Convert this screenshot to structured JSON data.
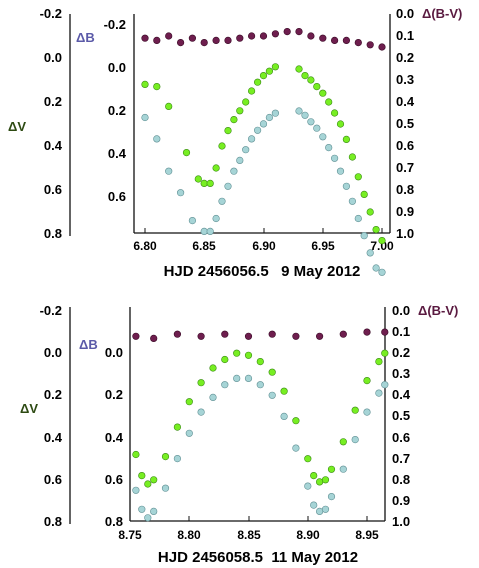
{
  "colors": {
    "v_series": "#77ee22",
    "b_series": "#a6d4d6",
    "bv_series": "#6e1e4e",
    "v_stroke": "#3a8a14",
    "b_stroke": "#5f8f93",
    "bv_stroke": "#3a0a26",
    "axis_v_label": "#2d4a12",
    "axis_b_label": "#5b5aa8",
    "axis_bv_label": "#5a1a40",
    "text": "#111111"
  },
  "chart_data": [
    {
      "type": "scatter",
      "xlabel": "HJD 2456056.5   9 May 2012",
      "left_axis": {
        "label": "ΔV",
        "range": [
          -0.2,
          0.8
        ],
        "inverted": true,
        "ticks": [
          "-0.2",
          "0.0",
          "0.2",
          "0.4",
          "0.6",
          "0.8"
        ]
      },
      "inner_axis": {
        "label": "ΔB",
        "range": [
          -0.2,
          0.8
        ],
        "inverted": true,
        "ticks": [
          "-0.2",
          "0.0",
          "0.2",
          "0.4",
          "0.6"
        ]
      },
      "right_axis": {
        "label": "Δ(B-V)",
        "range": [
          0.0,
          1.0
        ],
        "inverted": true,
        "ticks": [
          "0.0",
          "0.1",
          "0.2",
          "0.3",
          "0.4",
          "0.5",
          "0.6",
          "0.7",
          "0.8",
          "0.9",
          "1.0"
        ]
      },
      "x_axis": {
        "range": [
          6.79,
          7.01
        ],
        "ticks": [
          "6.80",
          "6.85",
          "6.90",
          "6.95",
          "7.00"
        ]
      },
      "grid": false,
      "series": [
        {
          "key": "V",
          "x": [
            6.8,
            6.81,
            6.82,
            6.835,
            6.845,
            6.85,
            6.855,
            6.86,
            6.865,
            6.87,
            6.875,
            6.88,
            6.885,
            6.89,
            6.895,
            6.9,
            6.905,
            6.91,
            6.93,
            6.935,
            6.94,
            6.945,
            6.95,
            6.955,
            6.96,
            6.965,
            6.97,
            6.975,
            6.98,
            6.985,
            6.99,
            6.995,
            7.0
          ],
          "y": [
            0.12,
            0.13,
            0.22,
            0.43,
            0.55,
            0.57,
            0.57,
            0.5,
            0.4,
            0.33,
            0.28,
            0.24,
            0.2,
            0.15,
            0.11,
            0.08,
            0.06,
            0.04,
            0.05,
            0.08,
            0.1,
            0.13,
            0.16,
            0.2,
            0.25,
            0.3,
            0.37,
            0.45,
            0.54,
            0.62,
            0.7,
            0.78,
            0.83
          ]
        },
        {
          "key": "B",
          "x": [
            6.8,
            6.81,
            6.82,
            6.83,
            6.84,
            6.85,
            6.855,
            6.86,
            6.865,
            6.87,
            6.875,
            6.88,
            6.885,
            6.89,
            6.895,
            6.9,
            6.905,
            6.91,
            6.93,
            6.935,
            6.94,
            6.945,
            6.95,
            6.955,
            6.96,
            6.965,
            6.97,
            6.975,
            6.98,
            6.985,
            6.99,
            6.995,
            7.0
          ],
          "y": [
            0.23,
            0.33,
            0.48,
            0.58,
            0.71,
            0.76,
            0.76,
            0.7,
            0.62,
            0.55,
            0.48,
            0.43,
            0.38,
            0.33,
            0.29,
            0.26,
            0.23,
            0.21,
            0.2,
            0.22,
            0.25,
            0.28,
            0.32,
            0.37,
            0.42,
            0.48,
            0.55,
            0.62,
            0.7,
            0.78,
            0.86,
            0.93,
            0.95
          ]
        },
        {
          "key": "BV",
          "x": [
            6.8,
            6.81,
            6.82,
            6.83,
            6.84,
            6.85,
            6.86,
            6.87,
            6.88,
            6.89,
            6.9,
            6.91,
            6.92,
            6.93,
            6.94,
            6.95,
            6.96,
            6.97,
            6.98,
            6.99,
            7.0
          ],
          "y": [
            0.11,
            0.12,
            0.1,
            0.13,
            0.11,
            0.13,
            0.12,
            0.12,
            0.11,
            0.1,
            0.1,
            0.09,
            0.08,
            0.08,
            0.1,
            0.11,
            0.12,
            0.12,
            0.13,
            0.14,
            0.15
          ]
        }
      ]
    },
    {
      "type": "scatter",
      "xlabel": "HJD 2456058.5  11 May 2012",
      "left_axis": {
        "label": "ΔV",
        "range": [
          -0.2,
          0.8
        ],
        "inverted": true,
        "ticks": [
          "-0.2",
          "0.0",
          "0.2",
          "0.4",
          "0.6",
          "0.8"
        ]
      },
      "inner_axis": {
        "label": "ΔB",
        "range": [
          0.0,
          0.8
        ],
        "inverted": true,
        "ticks": [
          "0.0",
          "0.2",
          "0.4",
          "0.6",
          "0.8"
        ]
      },
      "right_axis": {
        "label": "Δ(B-V)",
        "range": [
          0.0,
          1.0
        ],
        "inverted": true,
        "ticks": [
          "0.0",
          "0.1",
          "0.2",
          "0.3",
          "0.4",
          "0.5",
          "0.6",
          "0.7",
          "0.8",
          "0.9",
          "1.0"
        ]
      },
      "x_axis": {
        "range": [
          8.75,
          8.965
        ],
        "ticks": [
          "8.75",
          "8.80",
          "8.85",
          "8.90",
          "8.95"
        ]
      },
      "grid": false,
      "series": [
        {
          "key": "V",
          "x": [
            8.755,
            8.76,
            8.765,
            8.77,
            8.78,
            8.79,
            8.8,
            8.81,
            8.82,
            8.83,
            8.84,
            8.85,
            8.86,
            8.87,
            8.88,
            8.89,
            8.9,
            8.905,
            8.91,
            8.915,
            8.92,
            8.93,
            8.94,
            8.95,
            8.96,
            8.965
          ],
          "y": [
            0.48,
            0.58,
            0.62,
            0.6,
            0.49,
            0.35,
            0.23,
            0.14,
            0.07,
            0.03,
            0.0,
            0.01,
            0.04,
            0.09,
            0.18,
            0.32,
            0.5,
            0.58,
            0.61,
            0.6,
            0.55,
            0.42,
            0.27,
            0.13,
            0.04,
            0.0
          ]
        },
        {
          "key": "B",
          "x": [
            8.755,
            8.76,
            8.765,
            8.77,
            8.78,
            8.79,
            8.8,
            8.81,
            8.82,
            8.83,
            8.84,
            8.85,
            8.86,
            8.87,
            8.88,
            8.89,
            8.9,
            8.905,
            8.91,
            8.915,
            8.92,
            8.93,
            8.94,
            8.95,
            8.96,
            8.965
          ],
          "y": [
            0.65,
            0.74,
            0.78,
            0.75,
            0.64,
            0.5,
            0.38,
            0.28,
            0.21,
            0.15,
            0.12,
            0.12,
            0.15,
            0.2,
            0.3,
            0.45,
            0.63,
            0.72,
            0.75,
            0.74,
            0.68,
            0.55,
            0.41,
            0.28,
            0.19,
            0.15
          ]
        },
        {
          "key": "BV",
          "x": [
            8.755,
            8.77,
            8.79,
            8.81,
            8.83,
            8.85,
            8.87,
            8.89,
            8.91,
            8.93,
            8.95,
            8.965
          ],
          "y": [
            0.12,
            0.13,
            0.11,
            0.12,
            0.11,
            0.12,
            0.11,
            0.12,
            0.12,
            0.11,
            0.1,
            0.1
          ]
        }
      ]
    }
  ]
}
